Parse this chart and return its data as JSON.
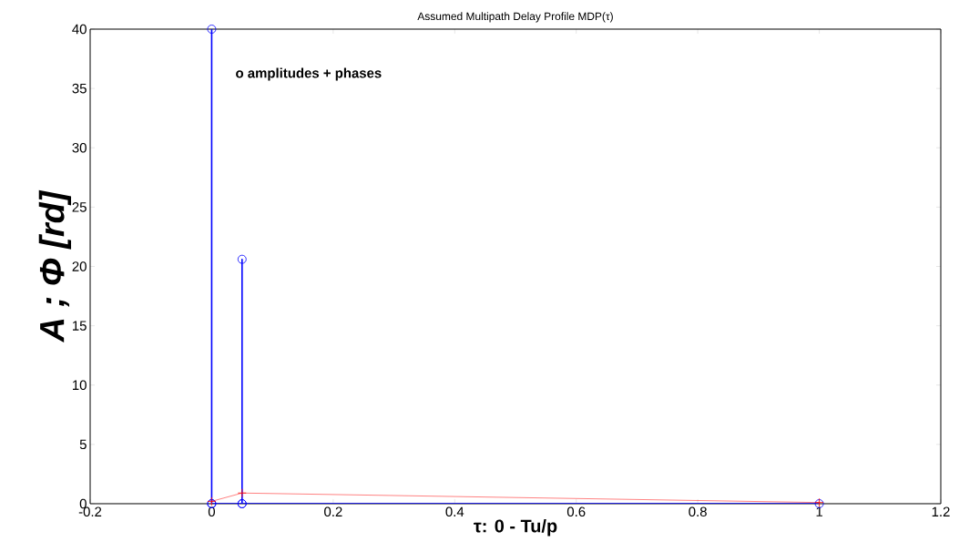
{
  "chart_data": {
    "type": "line",
    "title": "Assumed Multipath Delay Profile MDP(τ)",
    "xlabel": "τ: 0 - Tu/p",
    "ylabel": "A ; Φ [rd]",
    "annotations": [
      "o amplitudes  + phases"
    ],
    "series": [
      {
        "color": "#0000ff",
        "marker": "circle",
        "x": [
          0,
          0,
          0,
          0.05,
          0.05,
          0.05,
          1
        ],
        "values": [
          0,
          40,
          0,
          0,
          20.6,
          0,
          0
        ]
      },
      {
        "color": "#ff0000",
        "marker": "cross",
        "x": [
          0,
          0.05,
          1
        ],
        "values": [
          0.2,
          0.9,
          0.1
        ]
      }
    ],
    "xlim": [
      -0.2,
      1.2
    ],
    "xticks": [
      -0.2,
      0,
      0.2,
      0.4,
      0.6,
      0.8,
      1,
      1.2
    ],
    "ylim": [
      0,
      40
    ],
    "yticks": [
      0,
      5,
      10,
      15,
      20,
      25,
      30,
      35,
      40
    ],
    "grid": false
  }
}
